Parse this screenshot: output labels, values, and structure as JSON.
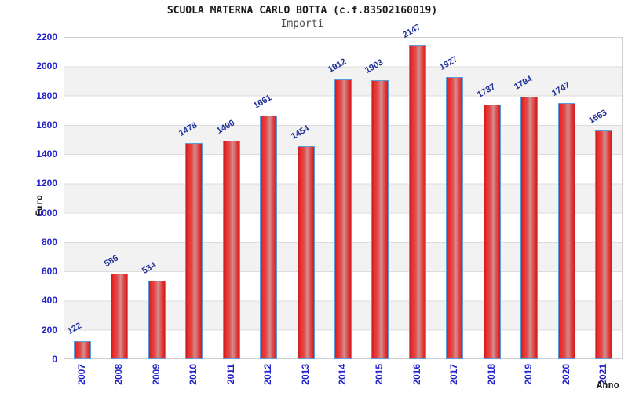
{
  "chart_data": {
    "type": "bar",
    "title": "SCUOLA MATERNA CARLO BOTTA (c.f.83502160019)",
    "subtitle": "Importi",
    "xlabel": "Anno",
    "ylabel": "Euro",
    "categories": [
      "2007",
      "2008",
      "2009",
      "2010",
      "2011",
      "2012",
      "2013",
      "2014",
      "2015",
      "2016",
      "2017",
      "2018",
      "2019",
      "2020",
      "2021"
    ],
    "values": [
      122,
      586,
      534,
      1478,
      1490,
      1661,
      1454,
      1912,
      1903,
      2147,
      1927,
      1737,
      1794,
      1747,
      1563
    ],
    "ylim": [
      0,
      2200
    ],
    "ytick_step": 200,
    "grid": "horizontal-bands",
    "legend_position": "none",
    "colors": {
      "bar_fill": "#e83030",
      "bar_border": "#5b9ddb",
      "axis_tick_text": "#2222cc",
      "value_label_text": "#223399",
      "band_gray": "#f2f2f2",
      "gridline": "#dcdcdc",
      "plot_border": "#cfcfcf",
      "title_text": "#1a1a1a",
      "subtitle_text": "#4a4a4a"
    }
  }
}
